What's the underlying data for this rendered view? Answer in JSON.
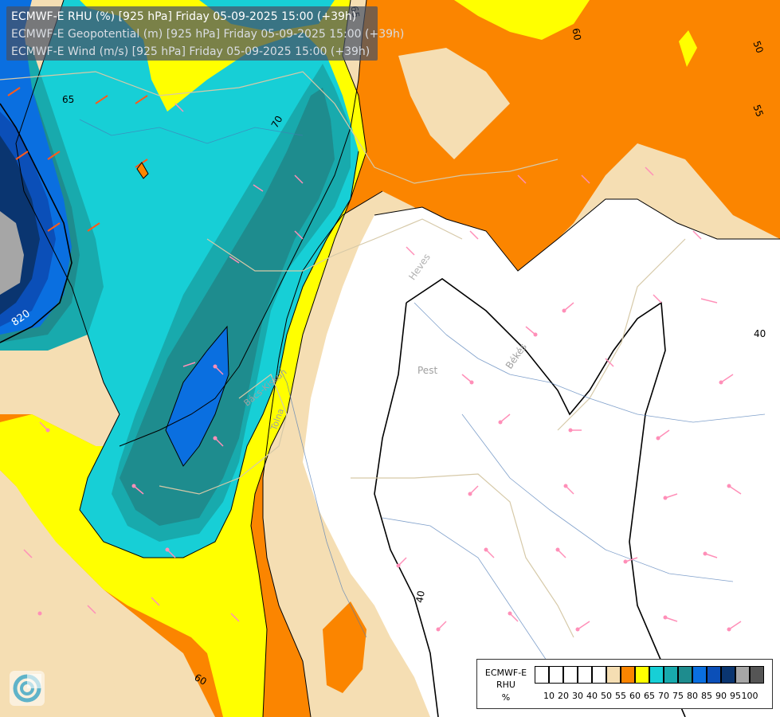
{
  "header": {
    "line1": "ECMWF-E RHU (%) [925 hPa] Friday 05-09-2025 15:00 (+39h)",
    "line2": "ECMWF-E Geopotential (m) [925 hPa] Friday 05-09-2025 15:00 (+39h)",
    "line3": "ECMWF-E Wind (m/s) [925 hPa] Friday 05-09-2025 15:00 (+39h)"
  },
  "legend": {
    "name": "ECMWF-E",
    "param": "RHU",
    "unit": "%",
    "bins": [
      {
        "tick": "10",
        "color": "#ffffff"
      },
      {
        "tick": "20",
        "color": "#ffffff"
      },
      {
        "tick": "30",
        "color": "#ffffff"
      },
      {
        "tick": "40",
        "color": "#ffffff"
      },
      {
        "tick": "50",
        "color": "#ffffff"
      },
      {
        "tick": "55",
        "color": "#f5deb3"
      },
      {
        "tick": "60",
        "color": "#fb8500"
      },
      {
        "tick": "65",
        "color": "#ffff00"
      },
      {
        "tick": "70",
        "color": "#17cfd6"
      },
      {
        "tick": "75",
        "color": "#18aaad"
      },
      {
        "tick": "80",
        "color": "#1e8c8e"
      },
      {
        "tick": "85",
        "color": "#0a6fe0"
      },
      {
        "tick": "90",
        "color": "#0b4fb8"
      },
      {
        "tick": "95",
        "color": "#0a3570"
      },
      {
        "tick": "100",
        "color": "#a6a6a6"
      }
    ],
    "last_color": "#555555"
  },
  "map_labels": {
    "contour_labels": [
      "65",
      "70",
      "65",
      "820",
      "60",
      "50",
      "55",
      "40",
      "40",
      "60"
    ],
    "region_labels": [
      "Heves",
      "Pest",
      "Békés",
      "Bács-Kiskun",
      "Tolna"
    ]
  },
  "colors": {
    "grey": "#a6a6a6",
    "navy": "#0a3570",
    "blue": "#0b4fb8",
    "blue2": "#0a6fe0",
    "teal_dark": "#1e8c8e",
    "teal": "#18aaad",
    "cyan": "#17cfd6",
    "yellow": "#ffff00",
    "orange": "#fb8500",
    "wheat": "#f5deb3",
    "white": "#ffffff"
  }
}
